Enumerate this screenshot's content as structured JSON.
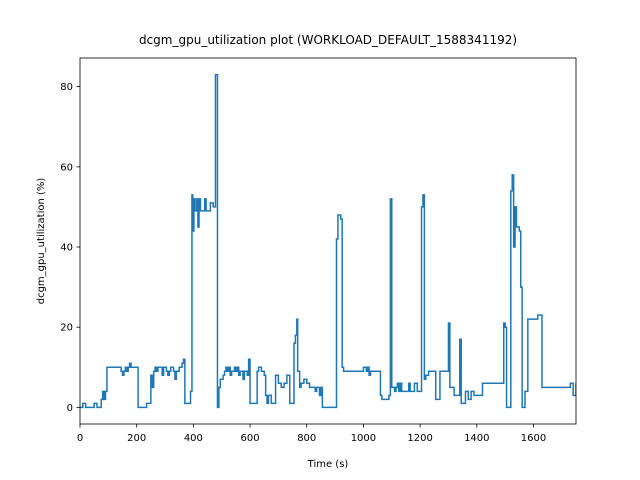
{
  "chart_data": {
    "type": "line",
    "drawstyle": "steps-post",
    "title": "dcgm_gpu_utilization plot (WORKLOAD_DEFAULT_1588341192)",
    "x_label": "Time (s)",
    "y_label": "dcgm_gpu_utilization (%)",
    "xlim": [
      0,
      1750
    ],
    "ylim": [
      -4.15,
      87.15
    ],
    "xticks": [
      0,
      200,
      400,
      600,
      800,
      1000,
      1200,
      1400,
      1600
    ],
    "yticks": [
      0,
      20,
      40,
      60,
      80
    ],
    "grid": false,
    "x": [
      0,
      10,
      20,
      40,
      50,
      60,
      75,
      80,
      85,
      90,
      95,
      140,
      145,
      150,
      155,
      160,
      165,
      170,
      175,
      180,
      200,
      205,
      230,
      235,
      245,
      250,
      255,
      260,
      265,
      270,
      275,
      290,
      295,
      305,
      310,
      315,
      320,
      330,
      335,
      340,
      350,
      360,
      365,
      370,
      385,
      390,
      395,
      398,
      402,
      406,
      412,
      416,
      420,
      425,
      435,
      440,
      445,
      460,
      470,
      478,
      485,
      490,
      495,
      505,
      510,
      515,
      520,
      525,
      530,
      535,
      545,
      550,
      555,
      560,
      565,
      575,
      580,
      590,
      595,
      600,
      620,
      625,
      630,
      640,
      650,
      655,
      660,
      665,
      675,
      690,
      700,
      710,
      720,
      730,
      740,
      755,
      760,
      765,
      768,
      775,
      780,
      790,
      800,
      810,
      830,
      835,
      845,
      850,
      855,
      870,
      875,
      880,
      885,
      905,
      910,
      920,
      925,
      930,
      1000,
      1010,
      1015,
      1020,
      1025,
      1060,
      1065,
      1090,
      1095,
      1100,
      1110,
      1115,
      1120,
      1125,
      1130,
      1135,
      1160,
      1165,
      1180,
      1190,
      1200,
      1205,
      1210,
      1215,
      1220,
      1230,
      1250,
      1255,
      1270,
      1295,
      1300,
      1305,
      1320,
      1330,
      1340,
      1345,
      1360,
      1370,
      1380,
      1390,
      1420,
      1480,
      1495,
      1500,
      1505,
      1520,
      1525,
      1530,
      1535,
      1540,
      1550,
      1555,
      1560,
      1570,
      1580,
      1610,
      1615,
      1630,
      1680,
      1720,
      1730,
      1740,
      1750
    ],
    "series": [
      {
        "name": "dcgm_gpu_utilization",
        "color": "#1f77b4",
        "values": [
          0,
          1,
          0,
          0,
          1,
          0,
          2,
          4,
          2,
          4,
          10,
          10,
          9,
          8,
          9,
          10,
          9,
          10,
          11,
          10,
          10,
          0,
          0,
          1,
          1,
          8,
          5,
          9,
          10,
          9,
          10,
          8,
          10,
          9,
          8,
          9,
          10,
          9,
          7,
          9,
          10,
          11,
          12,
          1,
          1,
          4,
          53,
          44,
          52,
          49,
          52,
          45,
          52,
          49,
          49,
          52,
          49,
          51,
          50,
          83,
          0,
          5,
          7,
          8,
          9,
          10,
          9,
          10,
          8,
          9,
          10,
          9,
          10,
          8,
          9,
          7,
          9,
          8,
          12,
          1,
          1,
          9,
          10,
          9,
          8,
          3,
          1,
          3,
          1,
          8,
          6,
          5,
          6,
          8,
          1,
          16,
          18,
          22,
          9,
          5,
          6,
          7,
          6,
          5,
          4,
          5,
          3,
          5,
          0,
          0,
          0,
          0,
          0,
          42,
          48,
          47,
          10,
          9,
          10,
          9,
          10,
          8,
          9,
          3,
          2,
          3,
          52,
          5,
          4,
          5,
          6,
          4,
          6,
          4,
          6,
          4,
          6,
          4,
          4,
          50,
          53,
          7,
          8,
          9,
          9,
          2,
          9,
          9,
          21,
          5,
          3,
          3,
          17,
          1,
          4,
          2,
          4,
          3,
          6,
          6,
          21,
          20,
          0,
          54,
          58,
          40,
          50,
          45,
          44,
          30,
          0,
          4,
          22,
          22,
          23,
          5,
          5,
          5,
          6,
          3,
          6
        ]
      }
    ]
  }
}
